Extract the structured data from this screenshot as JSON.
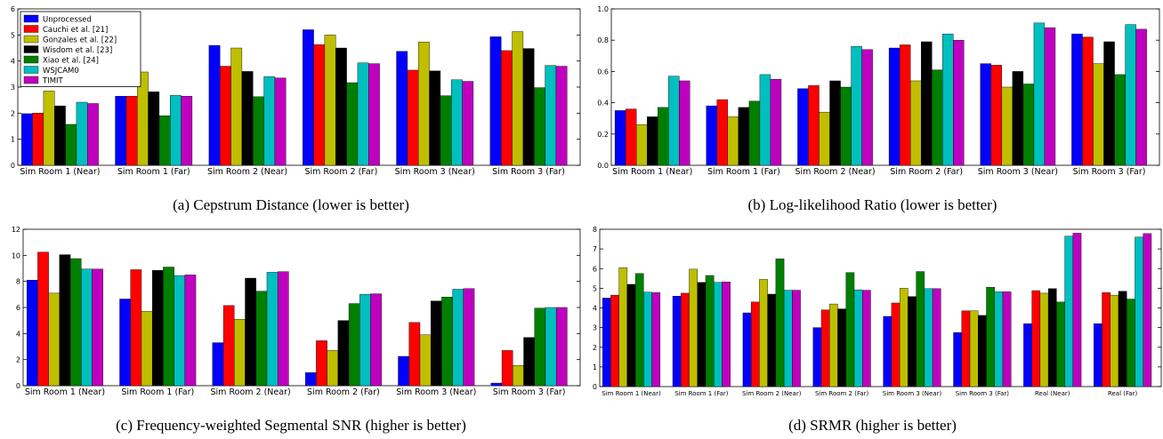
{
  "colors": {
    "Unprocessed": "#0000ff",
    "Cauchi et al. [21]": "#ff0000",
    "Gonzales et al. [22]": "#bfbf00",
    "Wisdom et al. [23]": "#000000",
    "Xiao et al. [24]": "#007f00",
    "WSJCAM0": "#00bfbf",
    "TIMIT": "#bf00bf"
  },
  "legend_entries": [
    "Unprocessed",
    "Cauchi et al. [21]",
    "Gonzales et al. [22]",
    "Wisdom et al. [23]",
    "Xiao et al. [24]",
    "WSJCAM0",
    "TIMIT"
  ],
  "chart_data": [
    {
      "id": "a",
      "type": "bar",
      "caption": "(a) Cepstrum Distance (lower is better)",
      "title": "",
      "xlabel": "",
      "ylabel": "",
      "ylim": [
        0,
        6
      ],
      "yticks": [
        "0",
        "1",
        "2",
        "3",
        "4",
        "5",
        "6"
      ],
      "legend": "top-left",
      "categories": [
        "Sim Room 1 (Near)",
        "Sim Room 1 (Far)",
        "Sim Room 2 (Near)",
        "Sim Room 2 (Far)",
        "Sim Room 3 (Near)",
        "Sim Room 3 (Far)"
      ],
      "series": [
        {
          "name": "Unprocessed",
          "values": [
            1.98,
            2.65,
            4.6,
            5.2,
            4.37,
            4.93
          ]
        },
        {
          "name": "Cauchi et al. [21]",
          "values": [
            2.0,
            2.65,
            3.8,
            4.63,
            3.65,
            4.4
          ]
        },
        {
          "name": "Gonzales et al. [22]",
          "values": [
            2.85,
            3.58,
            4.5,
            5.0,
            4.73,
            5.13
          ]
        },
        {
          "name": "Wisdom et al. [23]",
          "values": [
            2.28,
            2.82,
            3.6,
            4.5,
            3.62,
            4.48
          ]
        },
        {
          "name": "Xiao et al. [24]",
          "values": [
            1.57,
            1.9,
            2.63,
            3.17,
            2.67,
            2.98
          ]
        },
        {
          "name": "WSJCAM0",
          "values": [
            2.42,
            2.68,
            3.4,
            3.93,
            3.28,
            3.83
          ]
        },
        {
          "name": "TIMIT",
          "values": [
            2.37,
            2.65,
            3.35,
            3.9,
            3.22,
            3.8
          ]
        }
      ]
    },
    {
      "id": "b",
      "type": "bar",
      "caption": "(b) Log-likelihood Ratio (lower is better)",
      "title": "",
      "xlabel": "",
      "ylabel": "",
      "ylim": [
        0,
        1.0
      ],
      "yticks": [
        "0.0",
        "0.2",
        "0.4",
        "0.6",
        "0.8",
        "1.0"
      ],
      "legend": "none",
      "categories": [
        "Sim Room 1 (Near)",
        "Sim Room 1 (Far)",
        "Sim Room 2 (Near)",
        "Sim Room 2 (Far)",
        "Sim Room 3 (Near)",
        "Sim Room 3 (Far)"
      ],
      "series": [
        {
          "name": "Unprocessed",
          "values": [
            0.35,
            0.38,
            0.49,
            0.75,
            0.65,
            0.84
          ]
        },
        {
          "name": "Cauchi et al. [21]",
          "values": [
            0.36,
            0.42,
            0.51,
            0.77,
            0.64,
            0.82
          ]
        },
        {
          "name": "Gonzales et al. [22]",
          "values": [
            0.26,
            0.31,
            0.34,
            0.54,
            0.5,
            0.65
          ]
        },
        {
          "name": "Wisdom et al. [23]",
          "values": [
            0.31,
            0.37,
            0.54,
            0.79,
            0.6,
            0.79
          ]
        },
        {
          "name": "Xiao et al. [24]",
          "values": [
            0.37,
            0.41,
            0.5,
            0.61,
            0.52,
            0.58
          ]
        },
        {
          "name": "WSJCAM0",
          "values": [
            0.57,
            0.58,
            0.76,
            0.84,
            0.91,
            0.9
          ]
        },
        {
          "name": "TIMIT",
          "values": [
            0.54,
            0.55,
            0.74,
            0.8,
            0.88,
            0.87
          ]
        }
      ]
    },
    {
      "id": "c",
      "type": "bar",
      "caption": "(c) Frequency-weighted Segmental SNR (higher is better)",
      "title": "",
      "xlabel": "",
      "ylabel": "",
      "ylim": [
        0,
        12
      ],
      "yticks": [
        "0",
        "2",
        "4",
        "6",
        "8",
        "10",
        "12"
      ],
      "legend": "none",
      "categories": [
        "Sim Room 1 (Near)",
        "Sim Room 1 (Far)",
        "Sim Room 2 (Near)",
        "Sim Room 2 (Far)",
        "Sim Room 3 (Near)",
        "Sim Room 3 (Far)"
      ],
      "series": [
        {
          "name": "Unprocessed",
          "values": [
            8.1,
            6.65,
            3.3,
            1.0,
            2.25,
            0.2
          ]
        },
        {
          "name": "Cauchi et al. [21]",
          "values": [
            10.25,
            8.9,
            6.15,
            3.45,
            4.85,
            2.7
          ]
        },
        {
          "name": "Gonzales et al. [22]",
          "values": [
            7.1,
            5.7,
            5.1,
            2.7,
            3.9,
            1.55
          ]
        },
        {
          "name": "Wisdom et al. [23]",
          "values": [
            10.05,
            8.85,
            8.25,
            5.0,
            6.5,
            3.7
          ]
        },
        {
          "name": "Xiao et al. [24]",
          "values": [
            9.75,
            9.1,
            7.25,
            6.3,
            6.8,
            5.95
          ]
        },
        {
          "name": "WSJCAM0",
          "values": [
            8.95,
            8.45,
            8.7,
            7.0,
            7.4,
            6.0
          ]
        },
        {
          "name": "TIMIT",
          "values": [
            8.95,
            8.5,
            8.75,
            7.05,
            7.45,
            6.0
          ]
        }
      ]
    },
    {
      "id": "d",
      "type": "bar",
      "caption": "(d) SRMR (higher is better)",
      "title": "",
      "xlabel": "",
      "ylabel": "",
      "ylim": [
        0,
        8
      ],
      "yticks": [
        "0",
        "1",
        "2",
        "3",
        "4",
        "5",
        "6",
        "7",
        "8"
      ],
      "legend": "none",
      "categories": [
        "Sim Room 1 (Near)",
        "Sim Room 1 (Far)",
        "Sim Room 2 (Near)",
        "Sim Room 2 (Far)",
        "Sim Room 3 (Near)",
        "Sim Room 3 (Far)",
        "Real (Near)",
        "Real (Far)"
      ],
      "series": [
        {
          "name": "Unprocessed",
          "values": [
            4.5,
            4.6,
            3.75,
            3.0,
            3.57,
            2.75,
            3.2,
            3.2
          ]
        },
        {
          "name": "Cauchi et al. [21]",
          "values": [
            4.65,
            4.75,
            4.3,
            3.9,
            4.25,
            3.85,
            4.88,
            4.78
          ]
        },
        {
          "name": "Gonzales et al. [22]",
          "values": [
            6.05,
            5.97,
            5.45,
            4.2,
            5.0,
            3.85,
            4.75,
            4.65
          ]
        },
        {
          "name": "Wisdom et al. [23]",
          "values": [
            5.2,
            5.3,
            4.7,
            3.95,
            4.58,
            3.62,
            4.98,
            4.85
          ]
        },
        {
          "name": "Xiao et al. [24]",
          "values": [
            5.75,
            5.65,
            6.5,
            5.8,
            5.85,
            5.05,
            4.3,
            4.45
          ]
        },
        {
          "name": "WSJCAM0",
          "values": [
            4.8,
            5.3,
            4.9,
            4.92,
            4.98,
            4.82,
            7.65,
            7.6
          ]
        },
        {
          "name": "TIMIT",
          "values": [
            4.78,
            5.32,
            4.9,
            4.9,
            4.98,
            4.82,
            7.8,
            7.78
          ]
        }
      ]
    }
  ]
}
